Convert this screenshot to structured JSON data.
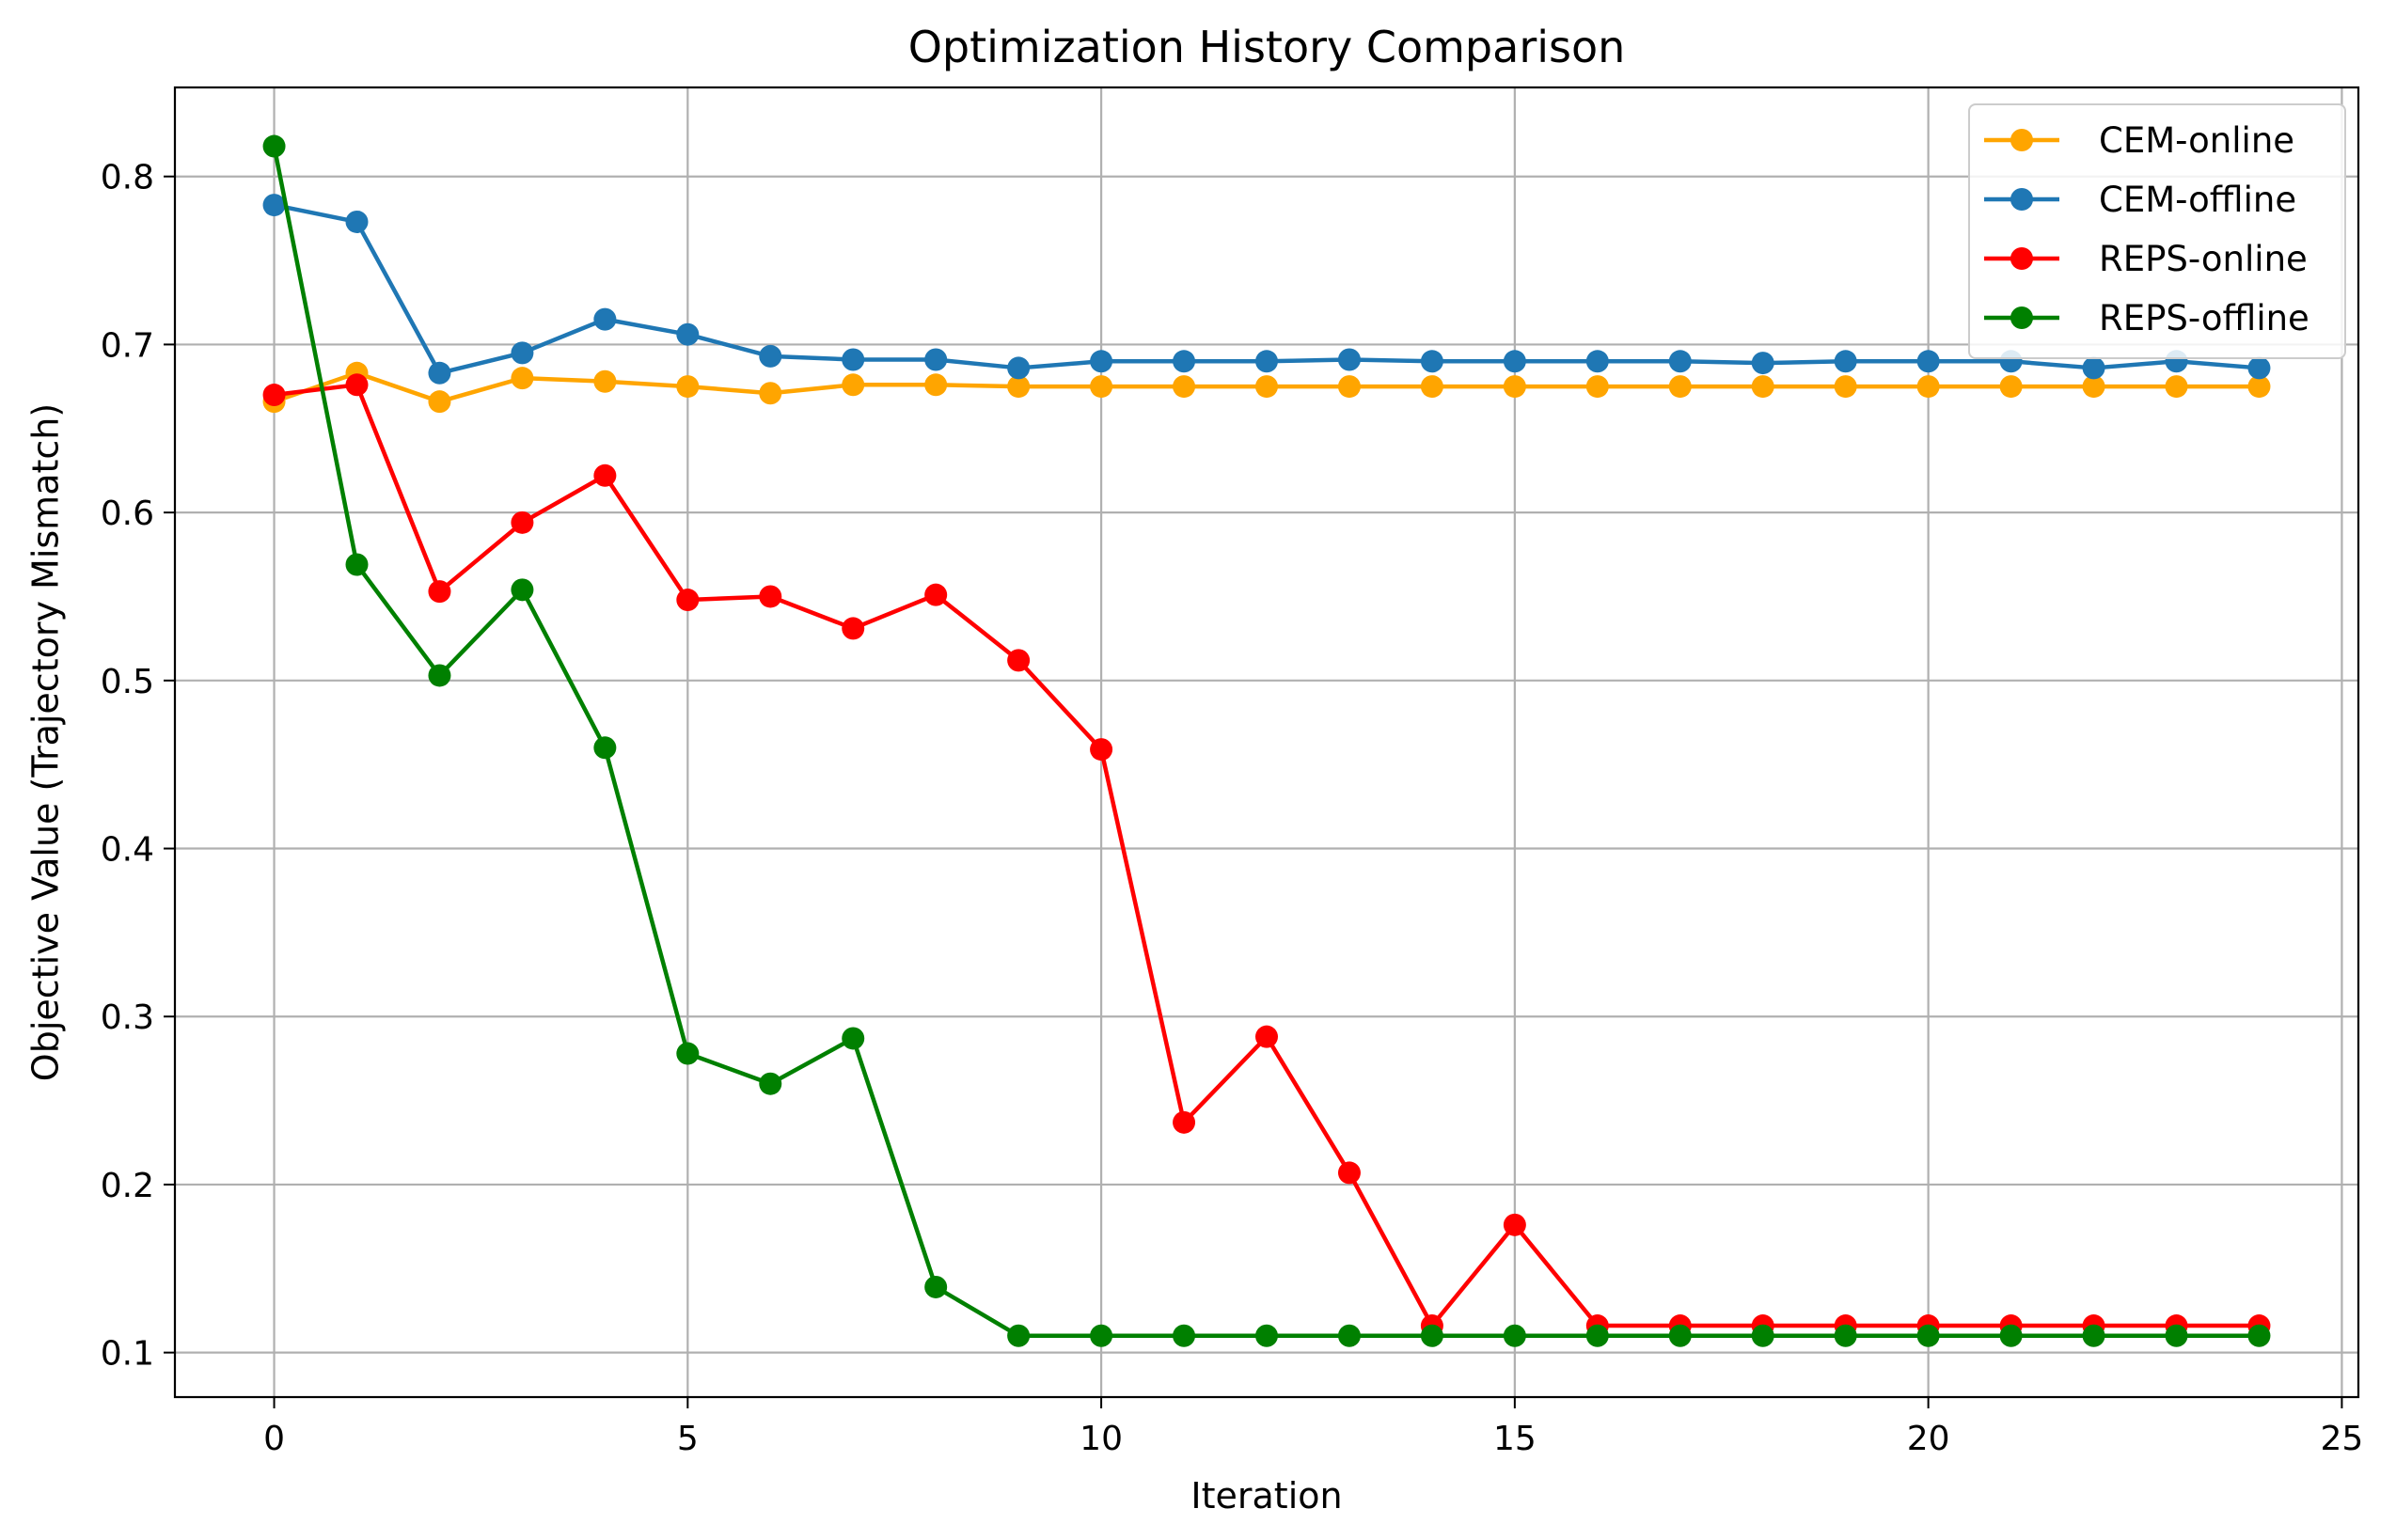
{
  "chart_data": {
    "type": "line",
    "title": "Optimization History Comparison",
    "xlabel": "Iteration",
    "ylabel": "Objective Value (Trajectory Mismatch)",
    "xlim": [
      -1.2,
      25.2
    ],
    "ylim": [
      0.0735,
      0.853
    ],
    "xticks": [
      0,
      5,
      10,
      15,
      20,
      25
    ],
    "yticks": [
      0.1,
      0.2,
      0.3,
      0.4,
      0.5,
      0.6,
      0.7,
      0.8
    ],
    "xtick_labels": [
      "0",
      "5",
      "10",
      "15",
      "20",
      "25"
    ],
    "ytick_labels": [
      "0.1",
      "0.2",
      "0.3",
      "0.4",
      "0.5",
      "0.6",
      "0.7",
      "0.8"
    ],
    "grid": true,
    "legend_position": "top-right",
    "x": [
      0,
      1,
      2,
      3,
      4,
      5,
      6,
      7,
      8,
      9,
      10,
      11,
      12,
      13,
      14,
      15,
      16,
      17,
      18,
      19,
      20,
      21,
      22,
      23,
      24
    ],
    "series": [
      {
        "name": "CEM-online",
        "color": "#ffa500",
        "marker": "circle",
        "values": [
          0.666,
          0.683,
          0.666,
          0.68,
          0.678,
          0.675,
          0.671,
          0.676,
          0.676,
          0.675,
          0.675,
          0.675,
          0.675,
          0.675,
          0.675,
          0.675,
          0.675,
          0.675,
          0.675,
          0.675,
          0.675,
          0.675,
          0.675,
          0.675,
          0.675
        ]
      },
      {
        "name": "CEM-offline",
        "color": "#1f77b4",
        "marker": "circle",
        "values": [
          0.783,
          0.773,
          0.683,
          0.695,
          0.715,
          0.706,
          0.693,
          0.691,
          0.691,
          0.686,
          0.69,
          0.69,
          0.69,
          0.691,
          0.69,
          0.69,
          0.69,
          0.69,
          0.689,
          0.69,
          0.69,
          0.69,
          0.686,
          0.69,
          0.686
        ]
      },
      {
        "name": "REPS-online",
        "color": "#ff0000",
        "marker": "circle",
        "values": [
          0.67,
          0.676,
          0.553,
          0.594,
          0.622,
          0.548,
          0.55,
          0.531,
          0.551,
          0.512,
          0.459,
          0.237,
          0.288,
          0.207,
          0.116,
          0.176,
          0.116,
          0.116,
          0.116,
          0.116,
          0.116,
          0.116,
          0.116,
          0.116,
          0.116
        ]
      },
      {
        "name": "REPS-offline",
        "color": "#008000",
        "marker": "circle",
        "values": [
          0.818,
          0.569,
          0.503,
          0.554,
          0.46,
          0.278,
          0.26,
          0.287,
          0.139,
          0.11,
          0.11,
          0.11,
          0.11,
          0.11,
          0.11,
          0.11,
          0.11,
          0.11,
          0.11,
          0.11,
          0.11,
          0.11,
          0.11,
          0.11,
          0.11
        ]
      }
    ]
  }
}
